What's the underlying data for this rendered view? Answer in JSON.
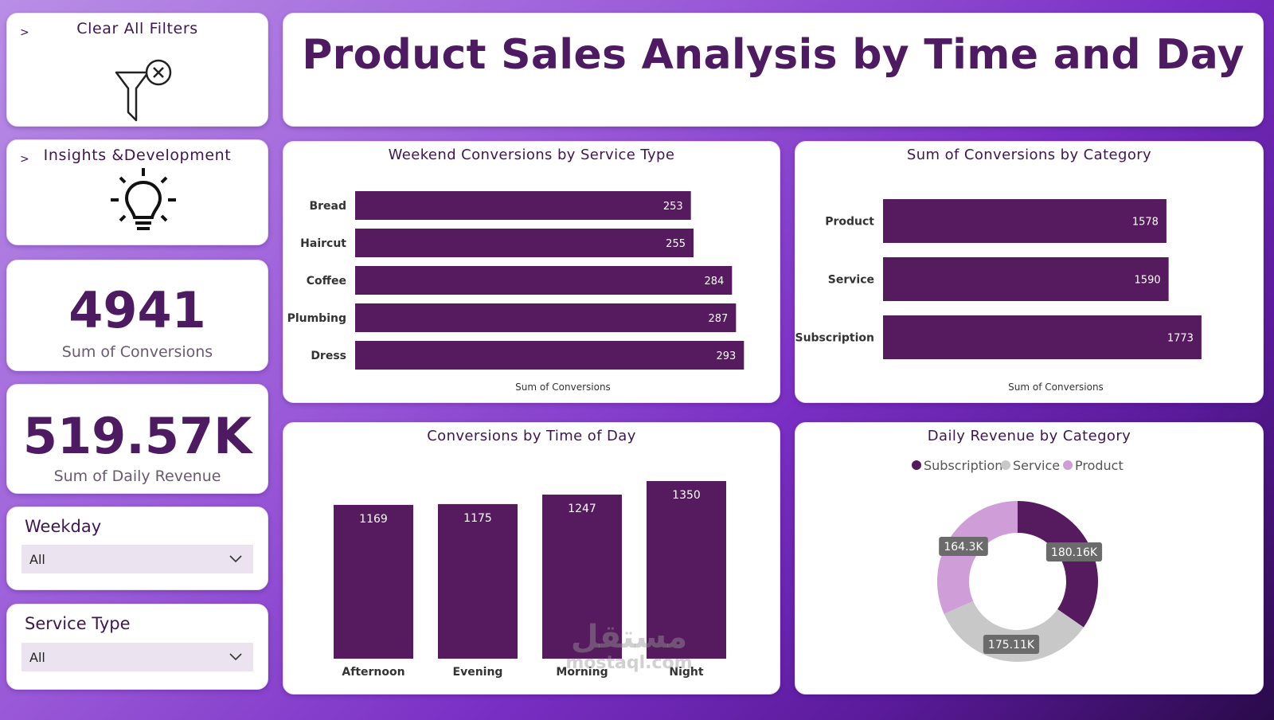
{
  "dashboard": {
    "title": "Product Sales Analysis by Time and Day"
  },
  "buttons": {
    "clear_filters": "Clear All Filters",
    "insights": "Insights &Development",
    "chevron": ">"
  },
  "kpis": {
    "conversions_value": "4941",
    "conversions_label": "Sum of Conversions",
    "revenue_value": "519.57K",
    "revenue_label": "Sum of Daily Revenue"
  },
  "slicers": {
    "weekday_title": "Weekday",
    "weekday_value": "All",
    "service_title": "Service Type",
    "service_value": "All"
  },
  "watermark": {
    "arabic": "مستقل",
    "latin": "mostaql.com"
  },
  "colors": {
    "bar": "#561a5e",
    "accent": "#4e1a62",
    "subscription": "#561a5e",
    "service": "#c8c8c8",
    "product": "#cf9ed8"
  },
  "chart_data": [
    {
      "type": "bar",
      "orientation": "horizontal",
      "title": "Weekend Conversions by Service Type",
      "categories": [
        "Bread",
        "Haircut",
        "Coffee",
        "Plumbing",
        "Dress"
      ],
      "values": [
        253,
        255,
        284,
        287,
        293
      ],
      "xlabel": "Sum of Conversions",
      "xlim": [
        0,
        300
      ]
    },
    {
      "type": "bar",
      "orientation": "horizontal",
      "title": "Sum of Conversions by Category",
      "categories": [
        "Product",
        "Service",
        "Subscription"
      ],
      "values": [
        1578,
        1590,
        1773
      ],
      "xlabel": "Sum of Conversions",
      "xlim": [
        0,
        1800
      ]
    },
    {
      "type": "bar",
      "orientation": "vertical",
      "title": "Conversions by Time of Day",
      "categories": [
        "Afternoon",
        "Evening",
        "Morning",
        "Night"
      ],
      "values": [
        1169,
        1175,
        1247,
        1350
      ],
      "ylim": [
        0,
        1350
      ]
    },
    {
      "type": "pie",
      "donut": true,
      "title": "Daily Revenue by Category",
      "legend": "top-center",
      "labels": [
        "Subscription",
        "Service",
        "Product"
      ],
      "values": [
        180.16,
        175.11,
        164.3
      ],
      "value_labels": [
        "180.16K",
        "175.11K",
        "164.3K"
      ]
    }
  ]
}
